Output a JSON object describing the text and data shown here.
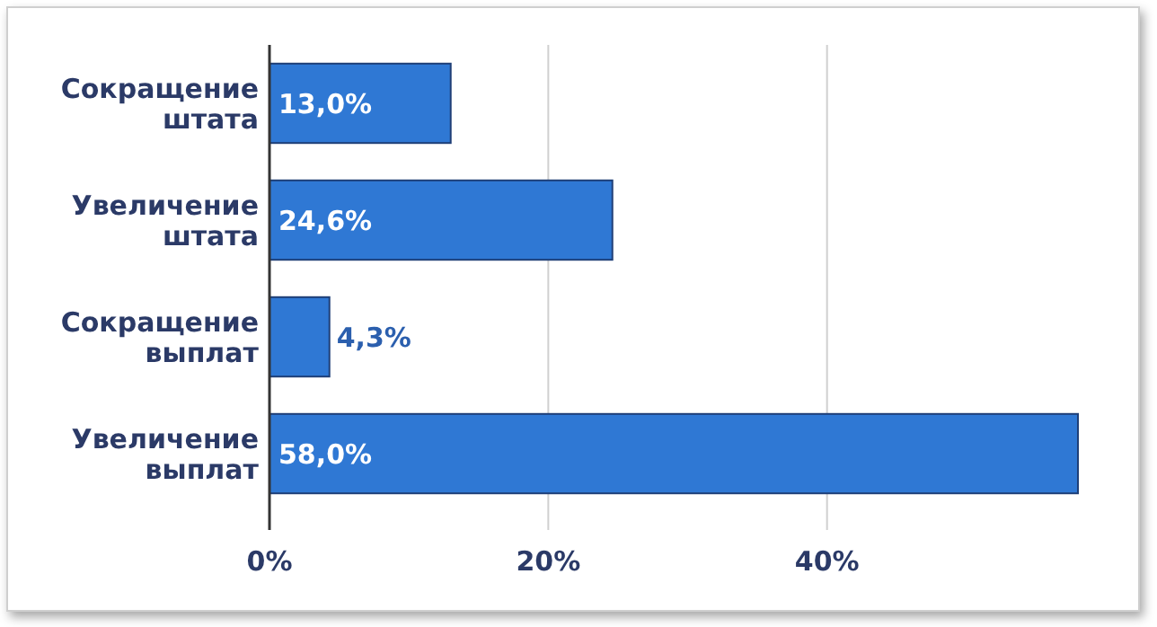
{
  "chart_data": {
    "type": "bar",
    "orientation": "horizontal",
    "categories": [
      "Сокращение штата",
      "Увеличение штата",
      "Сокращение выплат",
      "Увеличение выплат"
    ],
    "values": [
      13.0,
      24.6,
      4.3,
      58.0
    ],
    "value_labels": [
      "13,0%",
      "24,6%",
      "4,3%",
      "58,0%"
    ],
    "color": "#2f78d4",
    "xlim": [
      0,
      58
    ],
    "xticks": [
      {
        "value": 0,
        "label": "0%"
      },
      {
        "value": 20,
        "label": "20%"
      },
      {
        "value": 40,
        "label": "40%"
      }
    ],
    "grid": "x"
  }
}
